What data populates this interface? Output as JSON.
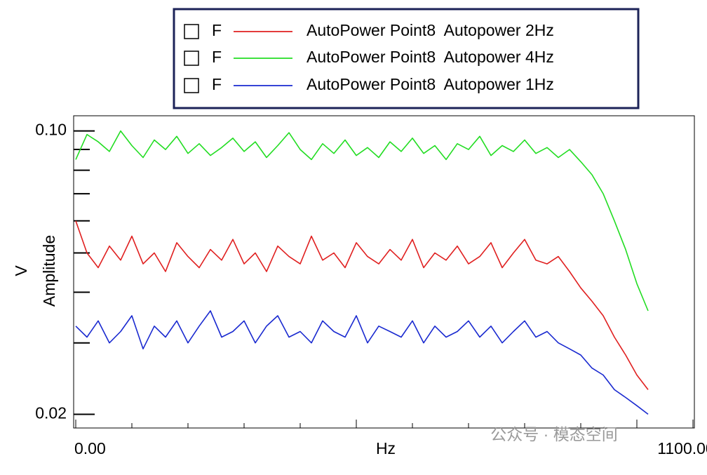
{
  "chart_data": {
    "type": "line",
    "y_label_unit": "V",
    "y_label": "Amplitude",
    "x_label": "Hz",
    "watermark": "公众号 · 模态空间",
    "x": [
      0,
      20,
      40,
      60,
      80,
      100,
      120,
      140,
      160,
      180,
      200,
      220,
      240,
      260,
      280,
      300,
      320,
      340,
      360,
      380,
      400,
      420,
      440,
      460,
      480,
      500,
      520,
      540,
      560,
      580,
      600,
      620,
      640,
      660,
      680,
      700,
      720,
      740,
      760,
      780,
      800,
      820,
      840,
      860,
      880,
      900,
      920,
      940,
      960,
      980,
      1000,
      1020
    ],
    "series": [
      {
        "flag": "F",
        "name": "AutoPower Point8  Autopower 2Hz",
        "color": "#e02020",
        "values": [
          0.06,
          0.05,
          0.046,
          0.052,
          0.048,
          0.055,
          0.047,
          0.05,
          0.045,
          0.053,
          0.049,
          0.046,
          0.051,
          0.048,
          0.054,
          0.047,
          0.05,
          0.045,
          0.052,
          0.049,
          0.047,
          0.055,
          0.048,
          0.05,
          0.046,
          0.053,
          0.049,
          0.047,
          0.051,
          0.048,
          0.054,
          0.046,
          0.05,
          0.048,
          0.052,
          0.047,
          0.049,
          0.053,
          0.046,
          0.05,
          0.054,
          0.048,
          0.047,
          0.049,
          0.045,
          0.041,
          0.038,
          0.035,
          0.031,
          0.028,
          0.025,
          0.023
        ]
      },
      {
        "flag": "F",
        "name": "AutoPower Point8  Autopower 4Hz",
        "color": "#22dd22",
        "values": [
          0.085,
          0.098,
          0.094,
          0.089,
          0.1,
          0.092,
          0.086,
          0.095,
          0.09,
          0.097,
          0.088,
          0.093,
          0.087,
          0.091,
          0.096,
          0.089,
          0.094,
          0.086,
          0.092,
          0.099,
          0.09,
          0.085,
          0.093,
          0.088,
          0.095,
          0.087,
          0.091,
          0.086,
          0.094,
          0.089,
          0.096,
          0.088,
          0.092,
          0.085,
          0.093,
          0.09,
          0.097,
          0.087,
          0.092,
          0.089,
          0.095,
          0.088,
          0.091,
          0.086,
          0.09,
          0.084,
          0.078,
          0.07,
          0.06,
          0.051,
          0.042,
          0.036
        ]
      },
      {
        "flag": "F",
        "name": "AutoPower Point8  Autopower 1Hz",
        "color": "#1a2ad0",
        "values": [
          0.033,
          0.031,
          0.034,
          0.03,
          0.032,
          0.035,
          0.029,
          0.033,
          0.031,
          0.034,
          0.03,
          0.033,
          0.036,
          0.031,
          0.032,
          0.034,
          0.03,
          0.033,
          0.035,
          0.031,
          0.032,
          0.03,
          0.034,
          0.032,
          0.031,
          0.035,
          0.03,
          0.033,
          0.032,
          0.031,
          0.034,
          0.03,
          0.033,
          0.031,
          0.032,
          0.034,
          0.031,
          0.033,
          0.03,
          0.032,
          0.034,
          0.031,
          0.032,
          0.03,
          0.029,
          0.028,
          0.026,
          0.025,
          0.023,
          0.022,
          0.021,
          0.02
        ]
      }
    ],
    "xlim": [
      0,
      1100
    ],
    "xticks": [
      {
        "value": 0,
        "label": "0.00"
      },
      {
        "value": 1100,
        "label": "1100.00"
      }
    ],
    "xticks_minor": [
      100,
      200,
      300,
      400,
      500,
      600,
      700,
      800,
      900,
      1000
    ],
    "ylim": [
      0.0185,
      0.109
    ],
    "ylog": true,
    "yticks": [
      {
        "value": 0.1,
        "label": "0.10"
      },
      0.02
    ],
    "yticks_minor": [
      0.03,
      0.04,
      0.05,
      0.06,
      0.07,
      0.08,
      0.09
    ]
  }
}
